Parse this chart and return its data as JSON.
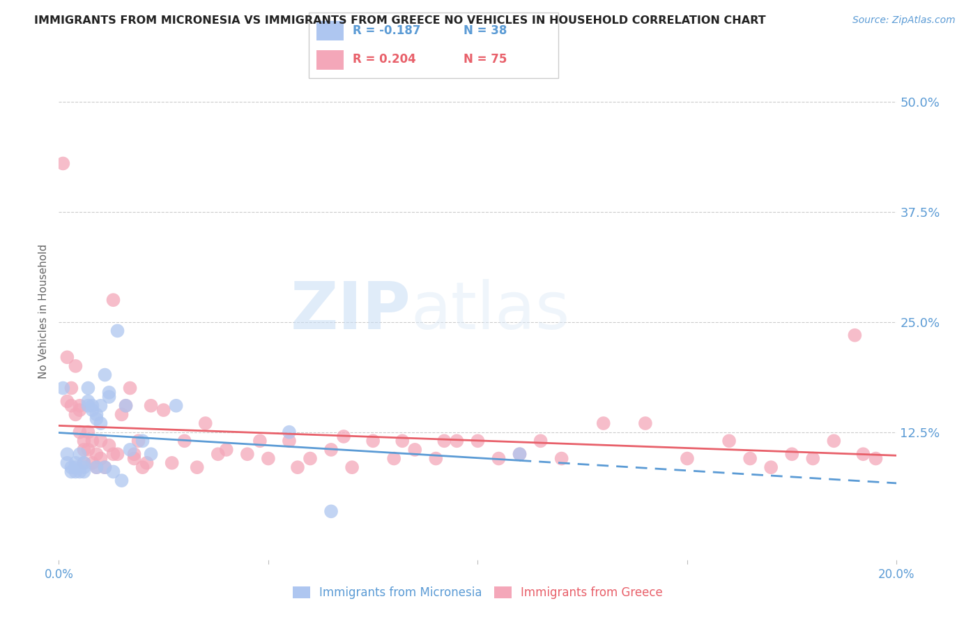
{
  "title": "IMMIGRANTS FROM MICRONESIA VS IMMIGRANTS FROM GREECE NO VEHICLES IN HOUSEHOLD CORRELATION CHART",
  "source": "Source: ZipAtlas.com",
  "ylabel": "No Vehicles in Household",
  "ytick_labels": [
    "50.0%",
    "37.5%",
    "25.0%",
    "12.5%"
  ],
  "ytick_values": [
    0.5,
    0.375,
    0.25,
    0.125
  ],
  "xlim": [
    0.0,
    0.2
  ],
  "ylim": [
    -0.02,
    0.545
  ],
  "legend_blue_label": "Immigrants from Micronesia",
  "legend_pink_label": "Immigrants from Greece",
  "legend_blue_R": "R = -0.187",
  "legend_blue_N": "N = 38",
  "legend_pink_R": "R = 0.204",
  "legend_pink_N": "N = 75",
  "watermark_zip": "ZIP",
  "watermark_atlas": "atlas",
  "blue_color": "#aec6f0",
  "pink_color": "#f4a7b9",
  "blue_trend_color": "#5b9bd5",
  "pink_trend_color": "#e8606a",
  "axis_color": "#5b9bd5",
  "title_color": "#222222",
  "blue_scatter_x": [
    0.001,
    0.002,
    0.002,
    0.003,
    0.003,
    0.004,
    0.004,
    0.004,
    0.005,
    0.005,
    0.006,
    0.006,
    0.006,
    0.007,
    0.007,
    0.007,
    0.008,
    0.008,
    0.009,
    0.009,
    0.009,
    0.01,
    0.01,
    0.011,
    0.011,
    0.012,
    0.012,
    0.013,
    0.014,
    0.015,
    0.016,
    0.017,
    0.02,
    0.022,
    0.028,
    0.055,
    0.065,
    0.11
  ],
  "blue_scatter_y": [
    0.175,
    0.1,
    0.09,
    0.085,
    0.08,
    0.09,
    0.085,
    0.08,
    0.1,
    0.08,
    0.09,
    0.085,
    0.08,
    0.175,
    0.16,
    0.155,
    0.155,
    0.15,
    0.145,
    0.14,
    0.085,
    0.155,
    0.135,
    0.19,
    0.085,
    0.17,
    0.165,
    0.08,
    0.24,
    0.07,
    0.155,
    0.105,
    0.115,
    0.1,
    0.155,
    0.125,
    0.035,
    0.1
  ],
  "pink_scatter_x": [
    0.001,
    0.002,
    0.002,
    0.003,
    0.003,
    0.004,
    0.004,
    0.005,
    0.005,
    0.005,
    0.006,
    0.006,
    0.006,
    0.007,
    0.007,
    0.008,
    0.008,
    0.009,
    0.009,
    0.01,
    0.01,
    0.011,
    0.012,
    0.013,
    0.013,
    0.014,
    0.015,
    0.016,
    0.017,
    0.018,
    0.018,
    0.019,
    0.02,
    0.021,
    0.022,
    0.025,
    0.027,
    0.03,
    0.033,
    0.035,
    0.038,
    0.04,
    0.045,
    0.048,
    0.05,
    0.055,
    0.057,
    0.06,
    0.065,
    0.068,
    0.07,
    0.075,
    0.08,
    0.082,
    0.085,
    0.09,
    0.092,
    0.095,
    0.1,
    0.105,
    0.11,
    0.115,
    0.12,
    0.13,
    0.14,
    0.15,
    0.16,
    0.165,
    0.17,
    0.175,
    0.18,
    0.185,
    0.19,
    0.192,
    0.195
  ],
  "pink_scatter_y": [
    0.43,
    0.16,
    0.21,
    0.175,
    0.155,
    0.2,
    0.145,
    0.125,
    0.15,
    0.155,
    0.09,
    0.105,
    0.115,
    0.105,
    0.125,
    0.09,
    0.115,
    0.085,
    0.1,
    0.115,
    0.095,
    0.085,
    0.11,
    0.275,
    0.1,
    0.1,
    0.145,
    0.155,
    0.175,
    0.095,
    0.1,
    0.115,
    0.085,
    0.09,
    0.155,
    0.15,
    0.09,
    0.115,
    0.085,
    0.135,
    0.1,
    0.105,
    0.1,
    0.115,
    0.095,
    0.115,
    0.085,
    0.095,
    0.105,
    0.12,
    0.085,
    0.115,
    0.095,
    0.115,
    0.105,
    0.095,
    0.115,
    0.115,
    0.115,
    0.095,
    0.1,
    0.115,
    0.095,
    0.135,
    0.135,
    0.095,
    0.115,
    0.095,
    0.085,
    0.1,
    0.095,
    0.115,
    0.235,
    0.1,
    0.095
  ]
}
